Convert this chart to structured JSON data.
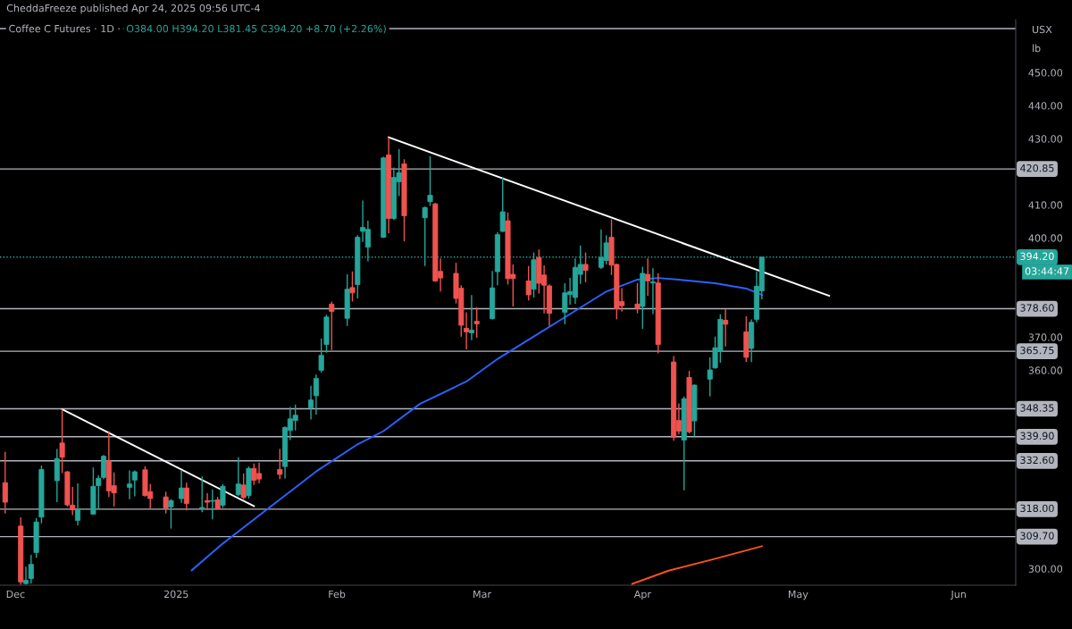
{
  "chart_data": {
    "type": "candlestick",
    "title": "Coffee C Futures · 1D ·",
    "subtitle": "O384.00 H394.20 L381.45 C394.20 +8.70 (+2.26%)",
    "annotations": [
      "CheddaFreeze published Apr 24, 2025 09:56 UTC-4",
      "USX",
      "lb",
      "03:44:47"
    ],
    "xlim": [
      "2024-11-28",
      "2025-06-12"
    ],
    "xticks": [
      {
        "value": "2024-12-01",
        "label": "Dec"
      },
      {
        "value": "2025-01-01",
        "label": "2025"
      },
      {
        "value": "2025-02-01",
        "label": "Feb"
      },
      {
        "value": "2025-03-01",
        "label": "Mar"
      },
      {
        "value": "2025-04-01",
        "label": "Apr"
      },
      {
        "value": "2025-05-01",
        "label": "May"
      },
      {
        "value": "2025-06-01",
        "label": "Jun"
      }
    ],
    "ylim": [
      295,
      466
    ],
    "yticks": [
      {
        "value": 300,
        "label": "300.00"
      },
      {
        "value": 360,
        "label": "360.00"
      },
      {
        "value": 370,
        "label": "370.00"
      },
      {
        "value": 400,
        "label": "400.00"
      },
      {
        "value": 410,
        "label": "410.00"
      },
      {
        "value": 430,
        "label": "430.00"
      },
      {
        "value": 440,
        "label": "440.00"
      },
      {
        "value": 450,
        "label": "450.00"
      }
    ],
    "grid": false,
    "ref_lines": [
      {
        "axis": "y",
        "value": 463.3,
        "label": null,
        "color": "#b2b5be"
      },
      {
        "axis": "y",
        "value": 420.85,
        "label": "420.85",
        "color": "#b2b5be"
      },
      {
        "axis": "y",
        "value": 394.2,
        "label": "394.20",
        "color": "#26a69a",
        "line_style": "dotted"
      },
      {
        "axis": "y",
        "value": 378.6,
        "label": "378.60",
        "color": "#b2b5be"
      },
      {
        "axis": "y",
        "value": 365.75,
        "label": "365.75",
        "color": "#b2b5be"
      },
      {
        "axis": "y",
        "value": 348.35,
        "label": "348.35",
        "color": "#b2b5be"
      },
      {
        "axis": "y",
        "value": 339.9,
        "label": "339.90",
        "color": "#b2b5be"
      },
      {
        "axis": "y",
        "value": 332.6,
        "label": "332.60",
        "color": "#b2b5be"
      },
      {
        "axis": "y",
        "value": 318.0,
        "label": "318.00",
        "color": "#b2b5be"
      },
      {
        "axis": "y",
        "value": 309.7,
        "label": "309.70",
        "color": "#b2b5be"
      }
    ],
    "series": [
      {
        "type": "line",
        "color": "#2962ff",
        "x": [
          "2025-01-04",
          "2025-01-10",
          "2025-01-19",
          "2025-01-28",
          "2025-02-05",
          "2025-02-10",
          "2025-02-17",
          "2025-02-26",
          "2025-03-04",
          "2025-03-11",
          "2025-03-18",
          "2025-03-25",
          "2025-03-31",
          "2025-04-04",
          "2025-04-08",
          "2025-04-15",
          "2025-04-21",
          "2025-04-24"
        ],
        "values": [
          299.5,
          307.6,
          318.5,
          329.4,
          337.6,
          341.6,
          349.8,
          356.6,
          363.4,
          370.2,
          377.0,
          383.8,
          387.4,
          387.9,
          387.4,
          386.3,
          384.7,
          382.8
        ]
      },
      {
        "type": "line",
        "color": "#f7531c",
        "x": [
          "2025-03-30",
          "2025-04-06",
          "2025-04-15",
          "2025-04-24"
        ],
        "values": [
          295.4,
          299.4,
          303.0,
          306.8
        ]
      },
      {
        "type": "line",
        "color": "#ffffff",
        "x": [
          "2024-12-10",
          "2025-01-16"
        ],
        "values": [
          348.2,
          318.9
        ]
      },
      {
        "type": "line",
        "color": "#ffffff",
        "x": [
          "2025-02-11",
          "2025-05-07"
        ],
        "values": [
          430.4,
          382.5
        ]
      },
      {
        "type": "candlestick",
        "x": [
          "2024-11-29",
          "2024-12-02",
          "2024-12-03",
          "2024-12-04",
          "2024-12-05",
          "2024-12-06",
          "2024-12-09",
          "2024-12-10",
          "2024-12-11",
          "2024-12-12",
          "2024-12-13",
          "2024-12-16",
          "2024-12-17",
          "2024-12-18",
          "2024-12-19",
          "2024-12-20",
          "2024-12-23",
          "2024-12-24",
          "2024-12-26",
          "2024-12-27",
          "2024-12-30",
          "2024-12-31",
          "2025-01-02",
          "2025-01-03",
          "2025-01-06",
          "2025-01-07",
          "2025-01-08",
          "2025-01-09",
          "2025-01-10",
          "2025-01-13",
          "2025-01-14",
          "2025-01-15",
          "2025-01-16",
          "2025-01-17",
          "2025-01-21",
          "2025-01-22",
          "2025-01-23",
          "2025-01-24",
          "2025-01-27",
          "2025-01-28",
          "2025-01-29",
          "2025-01-30",
          "2025-01-31",
          "2025-02-03",
          "2025-02-04",
          "2025-02-05",
          "2025-02-06",
          "2025-02-07",
          "2025-02-10",
          "2025-02-11",
          "2025-02-12",
          "2025-02-13",
          "2025-02-14",
          "2025-02-18",
          "2025-02-19",
          "2025-02-20",
          "2025-02-21",
          "2025-02-24",
          "2025-02-25",
          "2025-02-26",
          "2025-02-27",
          "2025-02-28",
          "2025-03-03",
          "2025-03-04",
          "2025-03-05",
          "2025-03-06",
          "2025-03-07",
          "2025-03-10",
          "2025-03-11",
          "2025-03-12",
          "2025-03-13",
          "2025-03-14",
          "2025-03-17",
          "2025-03-18",
          "2025-03-19",
          "2025-03-20",
          "2025-03-21",
          "2025-03-24",
          "2025-03-25",
          "2025-03-26",
          "2025-03-27",
          "2025-03-28",
          "2025-03-31",
          "2025-04-01",
          "2025-04-02",
          "2025-04-03",
          "2025-04-04",
          "2025-04-07",
          "2025-04-08",
          "2025-04-09",
          "2025-04-10",
          "2025-04-11",
          "2025-04-14",
          "2025-04-15",
          "2025-04-16",
          "2025-04-17",
          "2025-04-21",
          "2025-04-22",
          "2025-04-23",
          "2025-04-24"
        ],
        "ohlc": [
          [
            326.0,
            335.3,
            316.7,
            320.1
          ],
          [
            312.9,
            315.5,
            295.2,
            296.0
          ],
          [
            295.5,
            300.6,
            295.2,
            296.5
          ],
          [
            297.0,
            304.2,
            295.5,
            301.3
          ],
          [
            304.9,
            315.3,
            303.3,
            314.1
          ],
          [
            315.6,
            331.2,
            313.7,
            330.0
          ],
          [
            326.6,
            336.2,
            320.1,
            333.3
          ],
          [
            338.0,
            348.2,
            328.9,
            333.7
          ],
          [
            329.3,
            329.5,
            318.8,
            319.3
          ],
          [
            319.2,
            324.7,
            316.2,
            317.8
          ],
          [
            314.6,
            325.8,
            313.1,
            317.8
          ],
          [
            316.5,
            330.6,
            316.3,
            324.9
          ],
          [
            325.1,
            328.2,
            318.1,
            327.3
          ],
          [
            327.6,
            334.4,
            327.0,
            334.0
          ],
          [
            332.6,
            341.6,
            321.7,
            323.5
          ],
          [
            325.1,
            329.1,
            318.8,
            322.9
          ],
          [
            324.6,
            329.7,
            321.0,
            325.6
          ],
          [
            326.8,
            329.7,
            321.9,
            329.3
          ],
          [
            329.9,
            331.0,
            321.8,
            322.1
          ],
          [
            323.3,
            325.6,
            318.2,
            321.2
          ],
          [
            321.7,
            323.3,
            316.7,
            318.3
          ],
          [
            318.7,
            321.0,
            312.1,
            320.6
          ],
          [
            321.2,
            329.7,
            319.9,
            324.4
          ],
          [
            324.4,
            326.0,
            317.6,
            319.7
          ],
          [
            318.2,
            327.9,
            317.1,
            318.5
          ],
          [
            320.6,
            322.8,
            317.8,
            320.1
          ],
          [
            320.4,
            323.9,
            314.9,
            320.6
          ],
          [
            320.8,
            321.7,
            317.9,
            318.2
          ],
          [
            319.2,
            325.6,
            318.4,
            324.9
          ],
          [
            322.4,
            333.7,
            321.9,
            325.6
          ],
          [
            325.3,
            328.8,
            321.0,
            321.5
          ],
          [
            322.1,
            330.9,
            321.2,
            330.3
          ],
          [
            330.3,
            331.8,
            325.3,
            326.7
          ],
          [
            328.8,
            332.1,
            325.8,
            327.1
          ],
          [
            330.0,
            336.2,
            327.1,
            328.5
          ],
          [
            330.9,
            343.0,
            327.3,
            342.7
          ],
          [
            341.8,
            348.9,
            338.9,
            345.3
          ],
          [
            344.8,
            349.6,
            341.8,
            346.4
          ],
          [
            348.6,
            355.3,
            345.1,
            351.0
          ],
          [
            352.3,
            358.7,
            346.6,
            357.5
          ],
          [
            360.0,
            369.6,
            359.3,
            364.5
          ],
          [
            367.8,
            376.8,
            365.3,
            376.1
          ],
          [
            380.0,
            380.8,
            366.1,
            377.8
          ],
          [
            375.7,
            389.0,
            373.4,
            384.5
          ],
          [
            385.0,
            389.9,
            380.8,
            383.4
          ],
          [
            385.9,
            400.8,
            381.7,
            400.2
          ],
          [
            402.0,
            411.3,
            398.8,
            403.2
          ],
          [
            397.2,
            405.2,
            392.9,
            402.6
          ],
          [
            400.2,
            424.5,
            400.0,
            424.2
          ],
          [
            425.1,
            430.4,
            401.4,
            405.9
          ],
          [
            405.9,
            421.3,
            405.4,
            418.3
          ],
          [
            417.0,
            426.9,
            412.7,
            419.7
          ],
          [
            422.4,
            423.8,
            399.0,
            406.7
          ],
          [
            406.1,
            409.5,
            391.5,
            409.2
          ],
          [
            411.0,
            424.7,
            409.7,
            412.9
          ],
          [
            410.3,
            410.6,
            386.7,
            387.0
          ],
          [
            389.9,
            393.8,
            383.8,
            387.9
          ],
          [
            389.3,
            392.5,
            380.2,
            381.7
          ],
          [
            384.8,
            385.7,
            370.2,
            373.6
          ],
          [
            372.7,
            377.5,
            366.3,
            371.6
          ],
          [
            371.3,
            382.7,
            369.1,
            372.1
          ],
          [
            374.8,
            379.0,
            369.8,
            374.0
          ],
          [
            375.6,
            390.0,
            375.4,
            384.9
          ],
          [
            389.8,
            401.7,
            385.7,
            401.0
          ],
          [
            402.0,
            418.3,
            401.8,
            407.9
          ],
          [
            405.2,
            407.7,
            385.9,
            387.7
          ],
          [
            389.0,
            392.0,
            379.3,
            387.7
          ],
          [
            387.0,
            391.5,
            381.1,
            382.8
          ],
          [
            384.5,
            395.6,
            382.0,
            393.4
          ],
          [
            394.1,
            396.5,
            383.2,
            386.3
          ],
          [
            388.8,
            391.7,
            377.2,
            385.7
          ],
          [
            385.5,
            386.0,
            373.4,
            377.2
          ],
          [
            377.5,
            386.3,
            373.9,
            383.4
          ],
          [
            382.9,
            387.9,
            379.8,
            383.8
          ],
          [
            382.0,
            393.8,
            380.0,
            391.1
          ],
          [
            389.0,
            397.7,
            386.1,
            392.0
          ],
          [
            392.0,
            395.6,
            386.6,
            390.2
          ],
          [
            391.1,
            402.6,
            390.6,
            394.1
          ],
          [
            393.2,
            400.8,
            392.0,
            398.5
          ],
          [
            400.2,
            405.6,
            388.8,
            391.8
          ],
          [
            392.0,
            392.2,
            375.4,
            378.6
          ],
          [
            380.8,
            384.8,
            377.7,
            379.5
          ],
          [
            380.0,
            386.3,
            377.2,
            378.7
          ],
          [
            379.3,
            391.3,
            372.5,
            389.3
          ],
          [
            389.0,
            393.8,
            382.5,
            387.0
          ],
          [
            386.4,
            390.8,
            377.0,
            386.7
          ],
          [
            386.4,
            389.3,
            365.1,
            367.8
          ],
          [
            362.5,
            364.3,
            338.7,
            339.7
          ],
          [
            344.8,
            350.0,
            340.6,
            341.6
          ],
          [
            338.9,
            352.1,
            323.7,
            351.4
          ],
          [
            357.8,
            359.8,
            340.9,
            341.4
          ],
          [
            344.7,
            355.7,
            340.0,
            355.5
          ],
          [
            357.3,
            363.9,
            352.1,
            360.1
          ],
          [
            360.7,
            370.2,
            360.5,
            366.8
          ],
          [
            365.7,
            376.9,
            362.3,
            375.4
          ],
          [
            375.1,
            378.4,
            367.2,
            373.9
          ],
          [
            371.6,
            376.3,
            362.5,
            363.9
          ],
          [
            366.6,
            375.4,
            362.5,
            374.5
          ],
          [
            375.4,
            389.9,
            374.5,
            385.4
          ],
          [
            384.0,
            394.2,
            381.45,
            394.2
          ]
        ],
        "colors": [
          "#ef5350",
          "#ef5350",
          "#26a69a",
          "#26a69a",
          "#26a69a",
          "#26a69a",
          "#26a69a",
          "#ef5350",
          "#ef5350",
          "#ef5350",
          "#26a69a",
          "#26a69a",
          "#26a69a",
          "#26a69a",
          "#ef5350",
          "#ef5350",
          "#26a69a",
          "#26a69a",
          "#ef5350",
          "#ef5350",
          "#ef5350",
          "#26a69a",
          "#26a69a",
          "#ef5350",
          "#26a69a",
          "#ef5350",
          "#26a69a",
          "#ef5350",
          "#26a69a",
          "#26a69a",
          "#ef5350",
          "#26a69a",
          "#ef5350",
          "#ef5350",
          "#ef5350",
          "#26a69a",
          "#26a69a",
          "#26a69a",
          "#26a69a",
          "#26a69a",
          "#26a69a",
          "#26a69a",
          "#ef5350",
          "#26a69a",
          "#ef5350",
          "#26a69a",
          "#26a69a",
          "#26a69a",
          "#26a69a",
          "#ef5350",
          "#26a69a",
          "#26a69a",
          "#ef5350",
          "#26a69a",
          "#26a69a",
          "#ef5350",
          "#ef5350",
          "#ef5350",
          "#ef5350",
          "#ef5350",
          "#26a69a",
          "#ef5350",
          "#26a69a",
          "#26a69a",
          "#26a69a",
          "#ef5350",
          "#ef5350",
          "#ef5350",
          "#26a69a",
          "#ef5350",
          "#ef5350",
          "#ef5350",
          "#26a69a",
          "#26a69a",
          "#26a69a",
          "#26a69a",
          "#ef5350",
          "#26a69a",
          "#26a69a",
          "#ef5350",
          "#ef5350",
          "#ef5350",
          "#ef5350",
          "#26a69a",
          "#ef5350",
          "#26a69a",
          "#ef5350",
          "#ef5350",
          "#ef5350",
          "#26a69a",
          "#ef5350",
          "#26a69a",
          "#26a69a",
          "#26a69a",
          "#26a69a",
          "#ef5350",
          "#ef5350",
          "#26a69a",
          "#26a69a",
          "#26a69a"
        ]
      }
    ]
  }
}
